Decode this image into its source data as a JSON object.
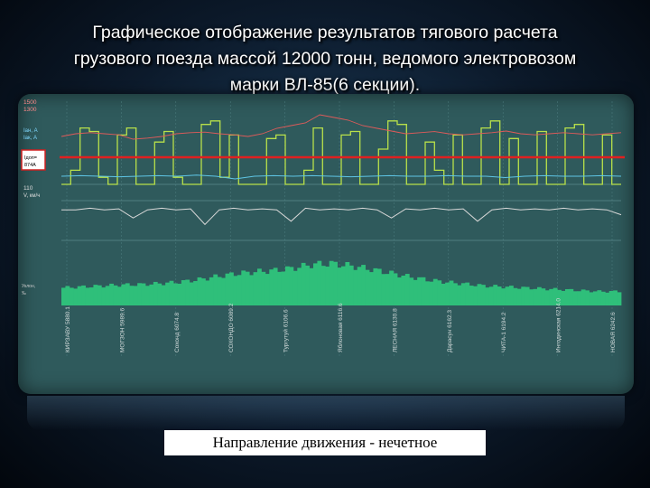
{
  "title_lines": [
    "Графическое отображение результатов тягового расчета",
    "грузового поезда массой 12000 тонн, ведомого электровозом",
    "марки ВЛ-85(6 секции)."
  ],
  "caption": "Направление движения - нечетное",
  "colors": {
    "current_green": "#b8e04a",
    "current_blue": "#5fc6e6",
    "voltage": "#e05a5a",
    "velocity": "#d8d8d8",
    "profile": "#2fbf7a",
    "limit_line": "#e02020"
  },
  "chart_data": {
    "type": "line",
    "left_labels": {
      "voltage_top": "1500",
      "voltage_mid": "1300",
      "current_a": "Iан, А",
      "current_b": "Iак, А",
      "limit_box": "Iдоп= 874А",
      "speed_top": "110",
      "speed_unit": "V, км/ч",
      "profile_a": "Уклон,",
      "profile_b": "‰"
    },
    "station_labels": [
      "КИРЗАВУ 5880.1",
      "МОГЗОН 5989.6",
      "Сохонд 6074.8",
      "СОХОНДО 6089.2",
      "Тургутуй 6106.6",
      "Яблоновая 6116.6",
      "ЛЕСНАЯ 6130.8",
      "Дарасун 6162.3",
      "ЧИТА-1 6194.2",
      "Ингодинская 6214.0",
      "НОВАЯ 6242.6"
    ],
    "limit_current": 874,
    "series": [
      {
        "values": [
          0,
          0.2,
          0.8,
          0.75,
          0.1,
          0.0,
          0.7,
          0.8,
          0.0,
          0.0,
          0.6,
          0.75,
          0.1,
          0.0,
          0.0,
          0.85,
          0.9,
          0.1,
          0.7,
          0.0,
          0.0,
          0.0,
          0.65,
          0.7,
          0.0,
          0.0,
          0.2,
          0.8,
          0.0,
          0.0,
          0.7,
          0.75,
          0.0,
          0.0,
          0.5,
          0.9,
          0.85,
          0.0,
          0.0,
          0.6,
          0.2,
          0.0,
          0.7,
          0.0,
          0.0,
          0.8,
          0.9,
          0.0,
          0.65,
          0.0,
          0.0,
          0.75,
          0.0,
          0.0,
          0.8,
          0.85,
          0.0,
          0.0,
          0.7,
          0.0
        ]
      },
      {
        "values": [
          0.55,
          0.6,
          0.62,
          0.6,
          0.58,
          0.5,
          0.52,
          0.55,
          0.6,
          0.62,
          0.63,
          0.6,
          0.58,
          0.55,
          0.6,
          0.7,
          0.75,
          0.8,
          0.95,
          0.9,
          0.85,
          0.75,
          0.7,
          0.65,
          0.6,
          0.62,
          0.64,
          0.6,
          0.58,
          0.6,
          0.62,
          0.65,
          0.6,
          0.58,
          0.6,
          0.62,
          0.6,
          0.58,
          0.6,
          0.62
        ]
      },
      {
        "values": [
          0.3,
          0.32,
          0.3,
          0.28,
          0.3,
          0.32,
          0.3,
          0.34,
          0.3,
          0.2,
          0.3,
          0.32,
          0.3,
          0.32,
          0.3,
          0.28,
          0.3,
          0.32,
          0.3,
          0.3,
          0.32,
          0.3,
          0.3,
          0.25,
          0.3,
          0.32,
          0.3,
          0.3,
          0.32,
          0.3
        ]
      },
      {
        "values": [
          0.55,
          0.55,
          0.6,
          0.55,
          0.58,
          0.3,
          0.55,
          0.6,
          0.55,
          0.58,
          0.1,
          0.55,
          0.6,
          0.55,
          0.58,
          0.55,
          0.2,
          0.6,
          0.55,
          0.58,
          0.55,
          0.6,
          0.55,
          0.3,
          0.58,
          0.55,
          0.6,
          0.55,
          0.58,
          0.2,
          0.55,
          0.6,
          0.55,
          0.58,
          0.55,
          0.6,
          0.55,
          0.58,
          0.55,
          0.4
        ]
      },
      {
        "values": [
          0.38,
          0.4,
          0.42,
          0.44,
          0.45,
          0.47,
          0.5,
          0.55,
          0.62,
          0.68,
          0.72,
          0.75,
          0.8,
          0.88,
          0.9,
          0.85,
          0.78,
          0.7,
          0.62,
          0.55,
          0.5,
          0.46,
          0.42,
          0.4,
          0.38,
          0.36,
          0.34,
          0.32,
          0.3,
          0.3
        ]
      }
    ]
  }
}
